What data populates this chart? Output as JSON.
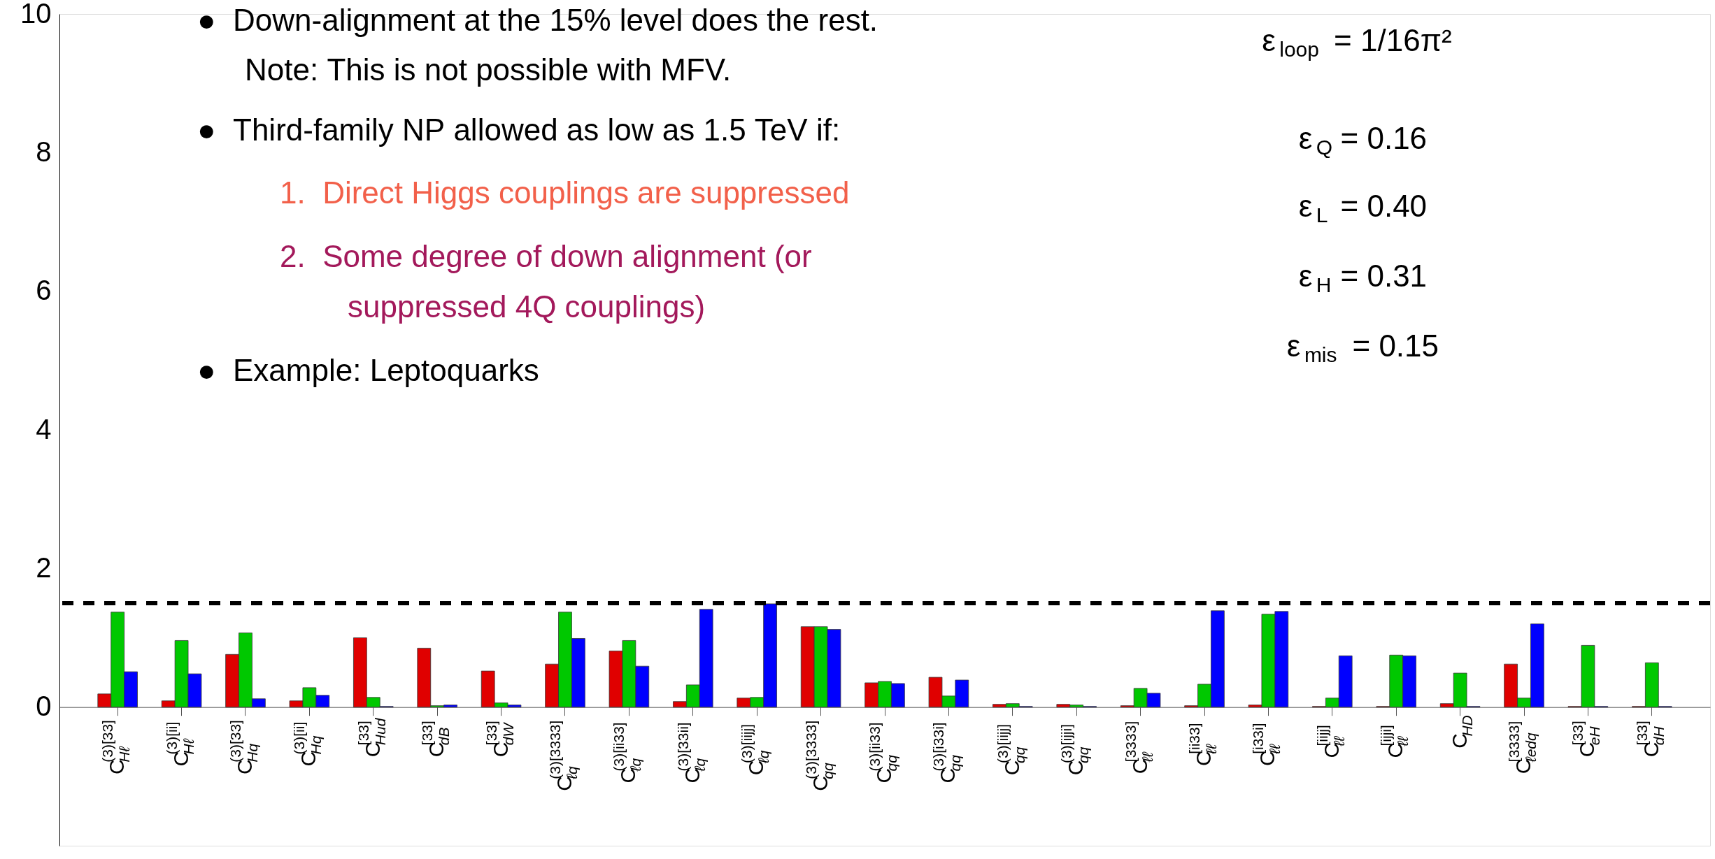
{
  "chart_data": {
    "type": "bar",
    "categories": [
      "C$_{Hℓ}$$^{(3)[33]}$",
      "C$_{Hℓ}$$^{(3)[ii]}$",
      "C$_{Hq}$$^{(3)[33]}$",
      "C$_{Hq}$$^{(3)[ii]}$",
      "C$_{Hud}$$^{[33]}$",
      "C$_{dB}$$^{[33]}$",
      "C$_{dW}$$^{[33]}$",
      "C$_{ℓq}$$^{(3)[3333]}$",
      "C$_{ℓq}$$^{(3)[ii33]}$",
      "C$_{ℓq}$$^{(3)[33ii]}$",
      "C$_{ℓq}$$^{(3)[iijj]}$",
      "C$_{qq}$$^{(3)[3333]}$",
      "C$_{qq}$$^{(3)[ii33]}$",
      "C$_{qq}$$^{(3)[i33i]}$",
      "C$_{qq}$$^{(3)[iijj]}$",
      "C$_{qq}$$^{(3)[ijji]}$",
      "C$_{ℓℓ}$$^{[3333]}$",
      "C$_{ℓℓ}$$^{[ii33]}$",
      "C$_{ℓℓ}$$^{[i33i]}$",
      "C$_{ℓℓ}$$^{[iijj]}$",
      "C$_{ℓℓ}$$^{[ijji]}$",
      "C$_{HD}$",
      "C$_{ℓedq}$$^{[3333]}$",
      "C$_{eH}$$^{[33]}$",
      "C$_{dH}$$^{[33]}$"
    ],
    "series": [
      {
        "color": "#e00000",
        "values": [
          0.19,
          0.09,
          0.76,
          0.09,
          1.0,
          0.85,
          0.52,
          0.62,
          0.81,
          0.08,
          0.13,
          1.16,
          0.35,
          0.43,
          0.04,
          0.04,
          0.02,
          0.02,
          0.03,
          0.01,
          0.01,
          0.05,
          0.62,
          0.01,
          0.01
        ]
      },
      {
        "color": "#00c800",
        "values": [
          1.37,
          0.96,
          1.07,
          0.28,
          0.14,
          0.02,
          0.06,
          1.37,
          0.96,
          0.32,
          0.14,
          1.16,
          0.37,
          0.16,
          0.05,
          0.03,
          0.27,
          0.33,
          1.34,
          0.13,
          0.75,
          0.49,
          0.13,
          0.89,
          0.64
        ]
      },
      {
        "color": "#0000ff",
        "values": [
          0.51,
          0.48,
          0.12,
          0.17,
          0.01,
          0.03,
          0.03,
          0.99,
          0.59,
          1.41,
          1.49,
          1.12,
          0.34,
          0.39,
          0.01,
          0.01,
          0.2,
          1.39,
          1.38,
          0.74,
          0.74,
          0.01,
          1.2,
          0.01,
          0.01
        ]
      }
    ],
    "ylim": [
      -2,
      10
    ],
    "yticks": [
      0,
      2,
      4,
      6,
      8,
      10
    ],
    "grid": false,
    "ref_lines": [
      {
        "axis": "y",
        "value": 1.5,
        "line_style": "dashed"
      }
    ],
    "annotations": [
      "●  Down-alignment at the 15% level does the rest.",
      "Note: This is not possible with MFV.",
      "●  Third-family NP allowed as low as 1.5 TeV if:",
      "1.  Direct Higgs couplings are suppressed",
      "2.  Some degree of down alignment (or",
      "suppressed 4Q couplings)",
      "●  Example: Leptoquarks",
      "ε$_{loop}$ = 1/16π²",
      "ε$_{Q}$ = 0.16",
      "ε$_{L}$ = 0.40",
      "ε$_{H}$ = 0.31",
      "ε$_{mis}$ = 0.15"
    ]
  }
}
